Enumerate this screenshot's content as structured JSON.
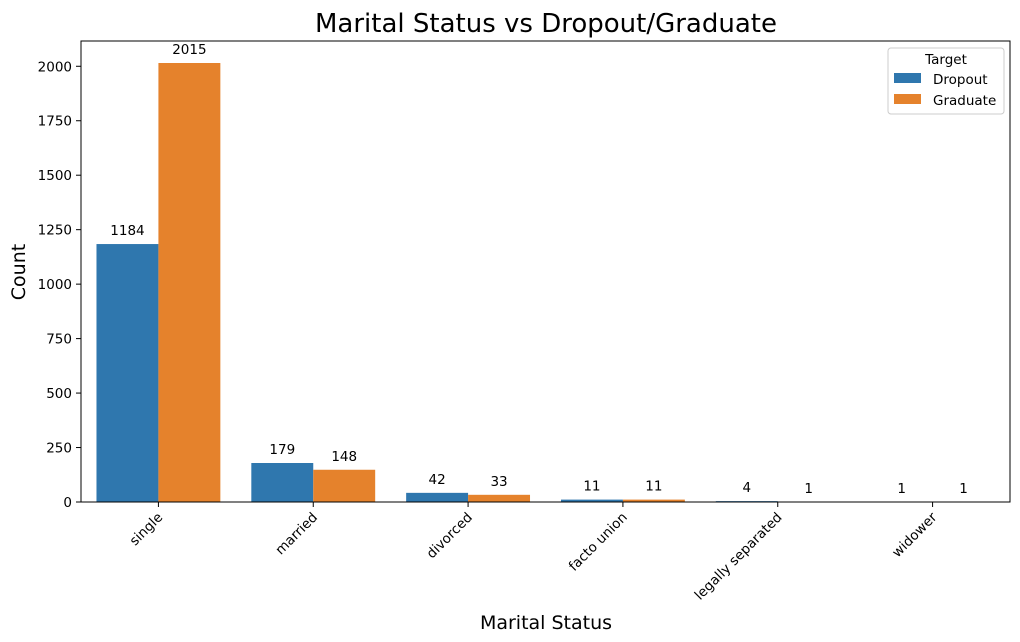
{
  "chart_data": {
    "type": "bar",
    "title": "Marital Status vs Dropout/Graduate",
    "xlabel": "Marital Status",
    "ylabel": "Count",
    "categories": [
      "single",
      "married",
      "divorced",
      "facto union",
      "legally separated",
      "widower"
    ],
    "series": [
      {
        "name": "Dropout",
        "values": [
          1184,
          179,
          42,
          11,
          4,
          1
        ],
        "color": "#2f77ae"
      },
      {
        "name": "Graduate",
        "values": [
          2015,
          148,
          33,
          11,
          1,
          1
        ],
        "color": "#e5822c"
      }
    ],
    "ylim": [
      0,
      2116
    ],
    "yticks": [
      0,
      250,
      500,
      750,
      1000,
      1250,
      1500,
      1750,
      2000
    ],
    "legend": {
      "title": "Target",
      "position": "top-right"
    },
    "grid": false
  }
}
